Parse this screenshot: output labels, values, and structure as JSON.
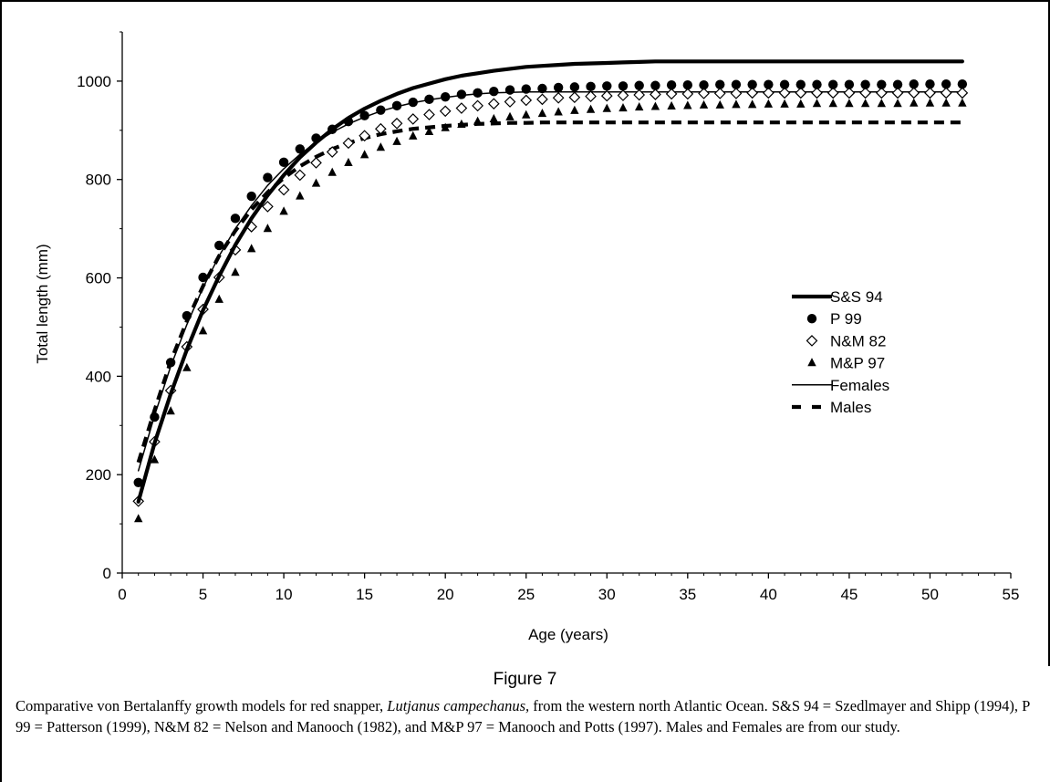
{
  "figure": {
    "label": "Figure 7",
    "caption_prefix": "Comparative von Bertalanffy growth models for red snapper,",
    "caption_species": "Lutjanus campechanus,",
    "caption_rest": "from the western north Atlantic Ocean. S&S 94 = Szedlmayer and Shipp (1994), P 99 = Patterson (1999), N&M 82 = Nelson and Manooch (1982), and M&P 97 = Manooch and Potts (1997). Males and Females are from our study."
  },
  "chart_data": {
    "type": "line",
    "xlabel": "Age (years)",
    "ylabel": "Total length (mm)",
    "xlim": [
      0,
      55
    ],
    "ylim": [
      0,
      1100
    ],
    "xticks": [
      0,
      5,
      10,
      15,
      20,
      25,
      30,
      35,
      40,
      45,
      50,
      55
    ],
    "yticks": [
      0,
      200,
      400,
      600,
      800,
      1000
    ],
    "grid": false,
    "legend_position": "right",
    "x": [
      1,
      2,
      3,
      4,
      5,
      6,
      7,
      8,
      9,
      10,
      11,
      12,
      13,
      14,
      15,
      16,
      17,
      18,
      19,
      20,
      21,
      22,
      23,
      24,
      25,
      26,
      27,
      28,
      29,
      30,
      31,
      32,
      33,
      34,
      35,
      36,
      37,
      38,
      39,
      40,
      41,
      42,
      43,
      44,
      45,
      46,
      47,
      48,
      49,
      50,
      51,
      52
    ],
    "series": [
      {
        "name": "S&S 94",
        "style": "thick-line",
        "color": "#000000",
        "values": [
          145,
          264,
          364,
          454,
          534,
          604,
          667,
          721,
          768,
          809,
          845,
          875,
          902,
          925,
          944,
          960,
          974,
          986,
          995,
          1004,
          1011,
          1016,
          1021,
          1025,
          1029,
          1031,
          1033,
          1035,
          1036,
          1037,
          1038,
          1039,
          1040,
          1040,
          1040,
          1040,
          1040,
          1040,
          1040,
          1040,
          1040,
          1040,
          1040,
          1040,
          1040,
          1040,
          1040,
          1040,
          1040,
          1040,
          1040,
          1040
        ]
      },
      {
        "name": "P 99",
        "style": "filled-circle",
        "color": "#000000",
        "values": [
          184,
          317,
          428,
          523,
          601,
          666,
          721,
          766,
          804,
          835,
          862,
          884,
          902,
          918,
          930,
          941,
          950,
          957,
          963,
          968,
          973,
          976,
          979,
          982,
          984,
          985,
          987,
          988,
          989,
          990,
          990,
          991,
          991,
          992,
          992,
          992,
          993,
          993,
          993,
          993,
          993,
          993,
          993,
          993,
          993,
          993,
          993,
          993,
          994,
          994,
          994,
          994
        ]
      },
      {
        "name": "N&M 82",
        "style": "open-diamond",
        "color": "#000000",
        "values": [
          146,
          267,
          371,
          460,
          536,
          601,
          657,
          704,
          745,
          779,
          809,
          834,
          856,
          874,
          889,
          903,
          914,
          923,
          932,
          939,
          945,
          950,
          954,
          958,
          961,
          963,
          966,
          967,
          969,
          970,
          971,
          972,
          973,
          974,
          974,
          975,
          975,
          975,
          976,
          976,
          976,
          976,
          976,
          976,
          976,
          976,
          976,
          976,
          976,
          976,
          976,
          976
        ]
      },
      {
        "name": "M&P 97",
        "style": "filled-triangle",
        "color": "#000000",
        "values": [
          110,
          230,
          329,
          417,
          492,
          556,
          611,
          659,
          700,
          735,
          766,
          792,
          814,
          834,
          850,
          865,
          877,
          888,
          897,
          905,
          912,
          918,
          923,
          927,
          931,
          934,
          937,
          940,
          942,
          944,
          945,
          947,
          948,
          949,
          950,
          951,
          951,
          952,
          952,
          953,
          953,
          953,
          954,
          954,
          954,
          954,
          954,
          954,
          955,
          955,
          955,
          955
        ]
      },
      {
        "name": "Females",
        "style": "thin-line",
        "color": "#000000",
        "values": [
          208,
          320,
          420,
          505,
          580,
          645,
          700,
          747,
          788,
          822,
          851,
          876,
          896,
          913,
          927,
          939,
          948,
          956,
          962,
          967,
          971,
          974,
          976,
          977,
          978,
          978,
          978,
          978,
          978,
          978,
          978,
          978,
          978,
          978,
          978,
          978,
          978,
          978,
          978,
          978,
          978,
          978,
          978,
          978,
          978,
          978,
          978,
          978,
          978,
          978,
          978,
          978
        ]
      },
      {
        "name": "Males",
        "style": "dashed-line",
        "color": "#000000",
        "values": [
          225,
          331,
          430,
          512,
          583,
          645,
          696,
          739,
          774,
          803,
          827,
          846,
          862,
          874,
          884,
          892,
          898,
          903,
          906,
          909,
          911,
          913,
          914,
          915,
          915,
          916,
          916,
          916,
          916,
          916,
          916,
          916,
          916,
          916,
          916,
          916,
          916,
          916,
          916,
          916,
          916,
          916,
          916,
          916,
          916,
          916,
          916,
          916,
          916,
          916,
          916,
          916
        ]
      }
    ]
  }
}
